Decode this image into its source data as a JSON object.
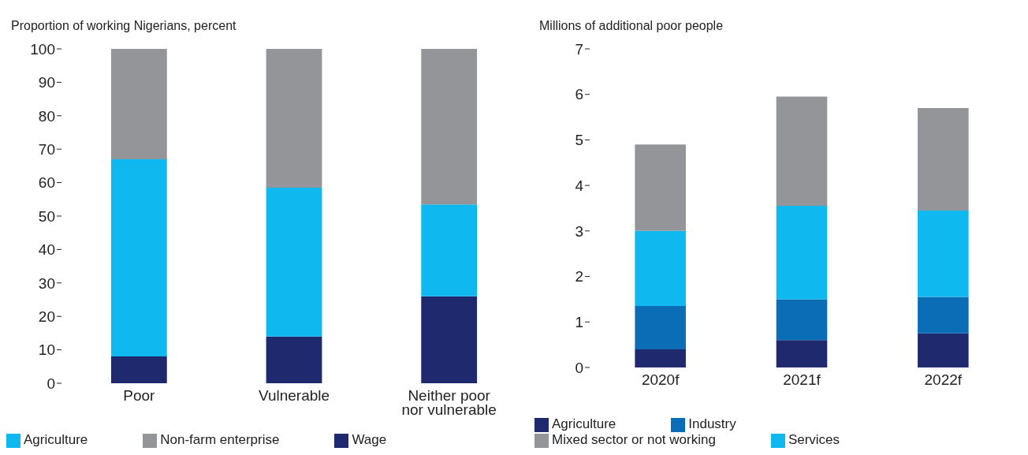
{
  "chart_data": [
    {
      "type": "bar",
      "stacked": true,
      "ylabel": "Proportion of working Nigerians, percent",
      "categories": [
        "Poor",
        "Vulnerable",
        "Neither poor nor vulnerable"
      ],
      "ylim": [
        0,
        100
      ],
      "yticks": [
        0,
        10,
        20,
        30,
        40,
        50,
        60,
        70,
        80,
        90,
        100
      ],
      "grid": false,
      "legend": "bottom",
      "series": [
        {
          "name": "Wage",
          "color": "#1f2a6e",
          "values": [
            8,
            14,
            26
          ]
        },
        {
          "name": "Agriculture",
          "color": "#0fb8ee",
          "values": [
            59,
            44.5,
            27.5
          ]
        },
        {
          "name": "Non-farm enterprise",
          "color": "#939598",
          "values": [
            33,
            41.5,
            46.5
          ]
        }
      ]
    },
    {
      "type": "bar",
      "stacked": true,
      "ylabel": "Millions of additional poor people",
      "categories": [
        "2020f",
        "2021f",
        "2022f"
      ],
      "ylim": [
        0,
        7
      ],
      "yticks": [
        0,
        1,
        2,
        3,
        4,
        5,
        6,
        7
      ],
      "grid": false,
      "legend": "bottom",
      "series": [
        {
          "name": "Agriculture",
          "color": "#1f2a6e",
          "values": [
            0.4,
            0.6,
            0.75
          ]
        },
        {
          "name": "Industry",
          "color": "#0a6db5",
          "values": [
            0.95,
            0.9,
            0.8
          ]
        },
        {
          "name": "Services",
          "color": "#0fb8ee",
          "values": [
            1.65,
            2.05,
            1.9
          ]
        },
        {
          "name": "Mixed sector or not working",
          "color": "#939598",
          "values": [
            1.9,
            2.4,
            2.25
          ]
        }
      ]
    }
  ]
}
